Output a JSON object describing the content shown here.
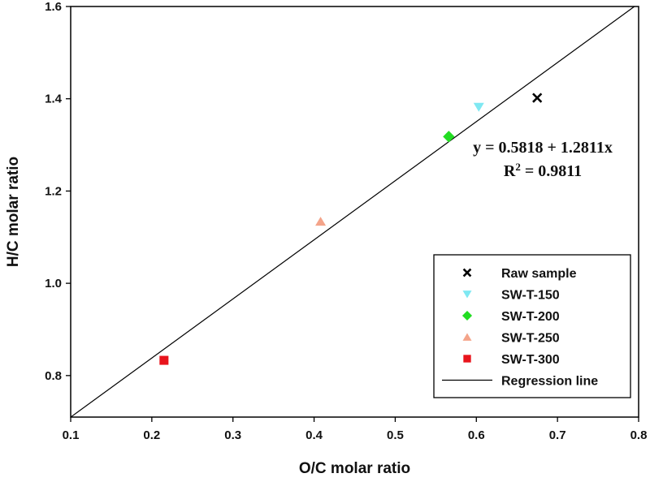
{
  "chart_data": {
    "type": "scatter",
    "xlabel": "O/C molar ratio",
    "ylabel": "H/C molar ratio",
    "xlim": [
      0.1,
      0.8
    ],
    "ylim": [
      0.71,
      1.6
    ],
    "xticks": [
      "0.1",
      "0.2",
      "0.3",
      "0.4",
      "0.5",
      "0.6",
      "0.7",
      "0.8"
    ],
    "yticks": [
      "0.8",
      "1.0",
      "1.2",
      "1.4",
      "1.6"
    ],
    "grid": false,
    "legend_position": "bottom-right",
    "series": [
      {
        "name": "Raw sample",
        "marker": "x",
        "color": "#000000",
        "points": [
          {
            "x": 0.675,
            "y": 1.402
          }
        ]
      },
      {
        "name": "SW-T-150",
        "marker": "triangle-down",
        "color": "#7fe8f2",
        "points": [
          {
            "x": 0.603,
            "y": 1.382
          }
        ]
      },
      {
        "name": "SW-T-200",
        "marker": "diamond",
        "color": "#22dd22",
        "points": [
          {
            "x": 0.566,
            "y": 1.318
          }
        ]
      },
      {
        "name": "SW-T-250",
        "marker": "triangle-up",
        "color": "#f4a48a",
        "points": [
          {
            "x": 0.408,
            "y": 1.134
          }
        ]
      },
      {
        "name": "SW-T-300",
        "marker": "square",
        "color": "#e8141c",
        "points": [
          {
            "x": 0.215,
            "y": 0.833
          }
        ]
      }
    ],
    "regression": {
      "name": "Regression line",
      "intercept": 0.5818,
      "slope": 1.2811,
      "equation": "y = 0.5818 + 1.2811x",
      "r2_prefix": "R",
      "r2_sup": "2",
      "r2_value": " = 0.9811"
    }
  }
}
